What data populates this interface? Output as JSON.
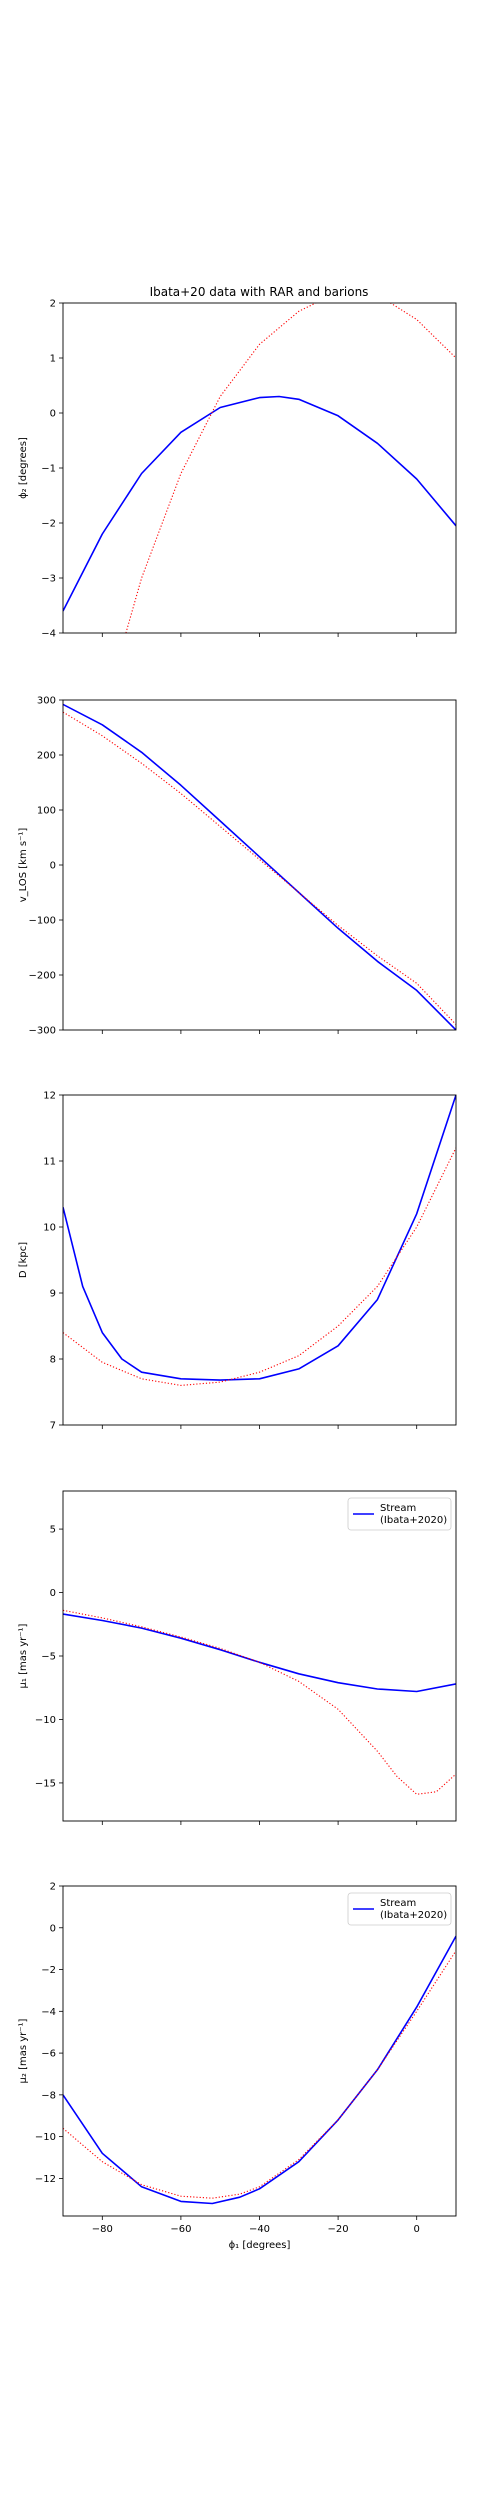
{
  "figure": {
    "title": "Ibata+20 data with RAR and barions"
  },
  "chart_data": [
    {
      "type": "line",
      "ylabel": "ϕ₂ [degrees]",
      "xlabel": "",
      "xlim": [
        -90,
        10
      ],
      "ylim": [
        -4,
        2
      ],
      "yticks": [
        -4,
        -3,
        -2,
        -1,
        0,
        1,
        2
      ],
      "xticks": [
        -80,
        -60,
        -40,
        -20,
        0
      ],
      "show_xticklabels": false,
      "grid": false,
      "legend": null,
      "series": [
        {
          "color": "#0000ff",
          "style": "solid",
          "x": [
            -90,
            -80,
            -70,
            -60,
            -50,
            -40,
            -35,
            -30,
            -20,
            -10,
            0,
            10
          ],
          "y": [
            -3.6,
            -2.2,
            -1.1,
            -0.35,
            0.1,
            0.28,
            0.3,
            0.25,
            -0.05,
            -0.55,
            -1.2,
            -2.05
          ]
        },
        {
          "color": "#ff0000",
          "style": "dotted",
          "x": [
            -74,
            -70,
            -60,
            -50,
            -40,
            -30,
            -20,
            -10,
            0,
            10
          ],
          "y": [
            -4,
            -3.0,
            -1.1,
            0.3,
            1.25,
            1.85,
            2.2,
            2.15,
            1.7,
            1.0
          ]
        }
      ]
    },
    {
      "type": "line",
      "ylabel": "v_LOS [km s⁻¹]",
      "xlabel": "",
      "xlim": [
        -90,
        10
      ],
      "ylim": [
        -300,
        300
      ],
      "yticks": [
        -300,
        -200,
        -100,
        0,
        100,
        200,
        300
      ],
      "xticks": [
        -80,
        -60,
        -40,
        -20,
        0
      ],
      "show_xticklabels": false,
      "grid": false,
      "legend": null,
      "series": [
        {
          "color": "#0000ff",
          "style": "solid",
          "x": [
            -90,
            -80,
            -70,
            -60,
            -50,
            -40,
            -30,
            -20,
            -10,
            0,
            10
          ],
          "y": [
            292,
            255,
            205,
            145,
            80,
            15,
            -50,
            -115,
            -175,
            -228,
            -300
          ]
        },
        {
          "color": "#ff0000",
          "style": "dotted",
          "x": [
            -90,
            -80,
            -70,
            -60,
            -50,
            -40,
            -30,
            -20,
            -10,
            0,
            10
          ],
          "y": [
            278,
            235,
            185,
            130,
            70,
            10,
            -50,
            -110,
            -165,
            -215,
            -290
          ]
        }
      ]
    },
    {
      "type": "line",
      "ylabel": "D [kpc]",
      "xlabel": "",
      "xlim": [
        -90,
        10
      ],
      "ylim": [
        7,
        12
      ],
      "yticks": [
        7,
        8,
        9,
        10,
        11,
        12
      ],
      "xticks": [
        -80,
        -60,
        -40,
        -20,
        0
      ],
      "show_xticklabels": false,
      "grid": false,
      "legend": null,
      "series": [
        {
          "color": "#0000ff",
          "style": "solid",
          "x": [
            -90,
            -85,
            -80,
            -75,
            -70,
            -60,
            -50,
            -40,
            -30,
            -20,
            -10,
            0,
            10
          ],
          "y": [
            10.3,
            9.1,
            8.4,
            8.0,
            7.8,
            7.7,
            7.68,
            7.7,
            7.85,
            8.2,
            8.9,
            10.2,
            12.0
          ]
        },
        {
          "color": "#ff0000",
          "style": "dotted",
          "x": [
            -90,
            -80,
            -70,
            -60,
            -50,
            -40,
            -30,
            -20,
            -10,
            0,
            10
          ],
          "y": [
            8.4,
            7.95,
            7.7,
            7.6,
            7.65,
            7.8,
            8.05,
            8.5,
            9.1,
            10.0,
            11.2
          ]
        }
      ]
    },
    {
      "type": "line",
      "ylabel": "μ₁ [mas yr⁻¹]",
      "xlabel": "",
      "xlim": [
        -90,
        10
      ],
      "ylim": [
        -18,
        8
      ],
      "yticks": [
        -15,
        -10,
        -5,
        0,
        5
      ],
      "xticks": [
        -80,
        -60,
        -40,
        -20,
        0
      ],
      "show_xticklabels": false,
      "grid": false,
      "legend": {
        "position": "top-right",
        "entries": [
          "Stream\n(Ibata+2020)"
        ]
      },
      "series": [
        {
          "name": "Stream\n(Ibata+2020)",
          "color": "#0000ff",
          "style": "solid",
          "x": [
            -90,
            -80,
            -70,
            -60,
            -50,
            -40,
            -30,
            -20,
            -10,
            0,
            10
          ],
          "y": [
            -1.7,
            -2.2,
            -2.8,
            -3.6,
            -4.5,
            -5.5,
            -6.4,
            -7.1,
            -7.6,
            -7.8,
            -7.2
          ]
        },
        {
          "color": "#ff0000",
          "style": "dotted",
          "x": [
            -90,
            -80,
            -70,
            -60,
            -50,
            -40,
            -30,
            -20,
            -10,
            -5,
            0,
            5,
            10
          ],
          "y": [
            -1.4,
            -2.0,
            -2.7,
            -3.5,
            -4.4,
            -5.5,
            -7.0,
            -9.2,
            -12.5,
            -14.5,
            -15.9,
            -15.7,
            -14.3
          ]
        }
      ]
    },
    {
      "type": "line",
      "ylabel": "μ₂ [mas yr⁻¹]",
      "xlabel": "ϕ₁ [degrees]",
      "xlim": [
        -90,
        10
      ],
      "ylim": [
        -13.8,
        2
      ],
      "yticks": [
        -12,
        -10,
        -8,
        -6,
        -4,
        -2,
        0,
        2
      ],
      "xticks": [
        -80,
        -60,
        -40,
        -20,
        0
      ],
      "xticklabels": [
        "−80",
        "−60",
        "−40",
        "−20",
        "0"
      ],
      "show_xticklabels": true,
      "grid": false,
      "legend": {
        "position": "top-right",
        "entries": [
          "Stream\n(Ibata+2020)"
        ]
      },
      "series": [
        {
          "name": "Stream\n(Ibata+2020)",
          "color": "#0000ff",
          "style": "solid",
          "x": [
            -90,
            -80,
            -70,
            -60,
            -52,
            -45,
            -40,
            -30,
            -20,
            -10,
            0,
            10
          ],
          "y": [
            -8.0,
            -10.8,
            -12.4,
            -13.1,
            -13.2,
            -12.9,
            -12.5,
            -11.2,
            -9.2,
            -6.8,
            -3.8,
            -0.4
          ]
        },
        {
          "color": "#ff0000",
          "style": "dotted",
          "x": [
            -90,
            -80,
            -70,
            -60,
            -52,
            -45,
            -40,
            -30,
            -20,
            -10,
            0,
            10
          ],
          "y": [
            -9.6,
            -11.2,
            -12.3,
            -12.85,
            -12.95,
            -12.75,
            -12.4,
            -11.1,
            -9.2,
            -6.8,
            -4.0,
            -1.1
          ]
        }
      ]
    }
  ]
}
